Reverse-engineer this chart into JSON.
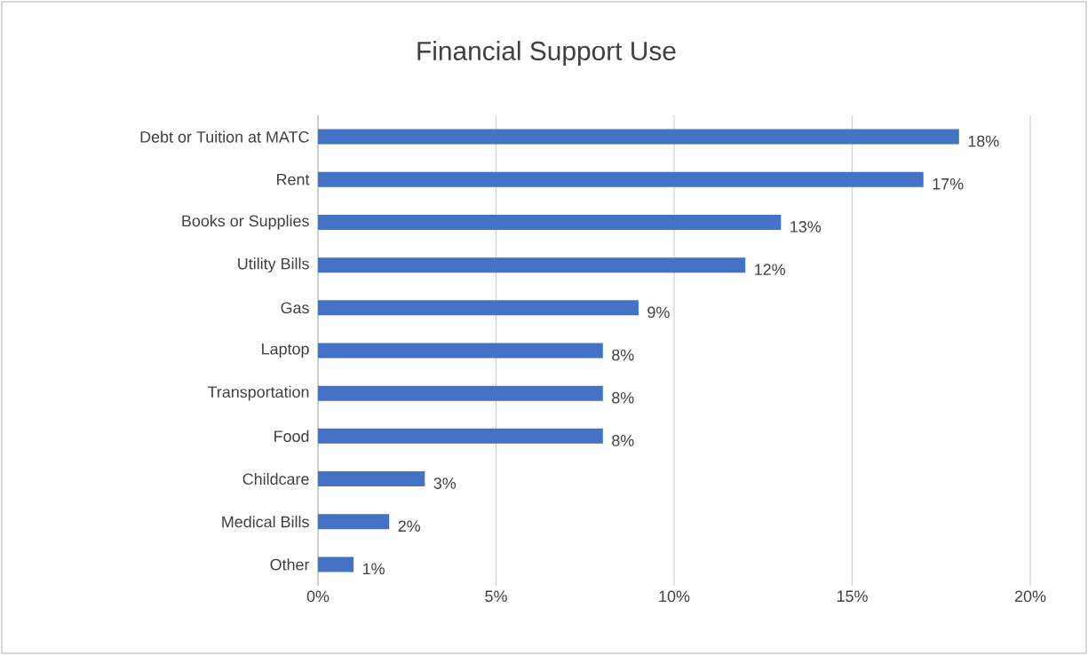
{
  "chart_data": {
    "type": "bar",
    "orientation": "horizontal",
    "title": "Financial Support Use",
    "categories": [
      "Debt or Tuition at MATC",
      "Rent",
      "Books or Supplies",
      "Utility Bills",
      "Gas",
      "Laptop",
      "Transportation",
      "Food",
      "Childcare",
      "Medical Bills",
      "Other"
    ],
    "values": [
      18,
      17,
      13,
      12,
      9,
      8,
      8,
      8,
      3,
      2,
      1
    ],
    "value_labels": [
      "18%",
      "17%",
      "13%",
      "12%",
      "9%",
      "8%",
      "8%",
      "8%",
      "3%",
      "2%",
      "1%"
    ],
    "color": "#4472c4",
    "xlim": [
      0,
      20
    ],
    "xticks": [
      {
        "value": 0,
        "label": "0%"
      },
      {
        "value": 5,
        "label": "5%"
      },
      {
        "value": 10,
        "label": "10%"
      },
      {
        "value": 15,
        "label": "15%"
      },
      {
        "value": 20,
        "label": "20%"
      }
    ],
    "grid": "x"
  }
}
